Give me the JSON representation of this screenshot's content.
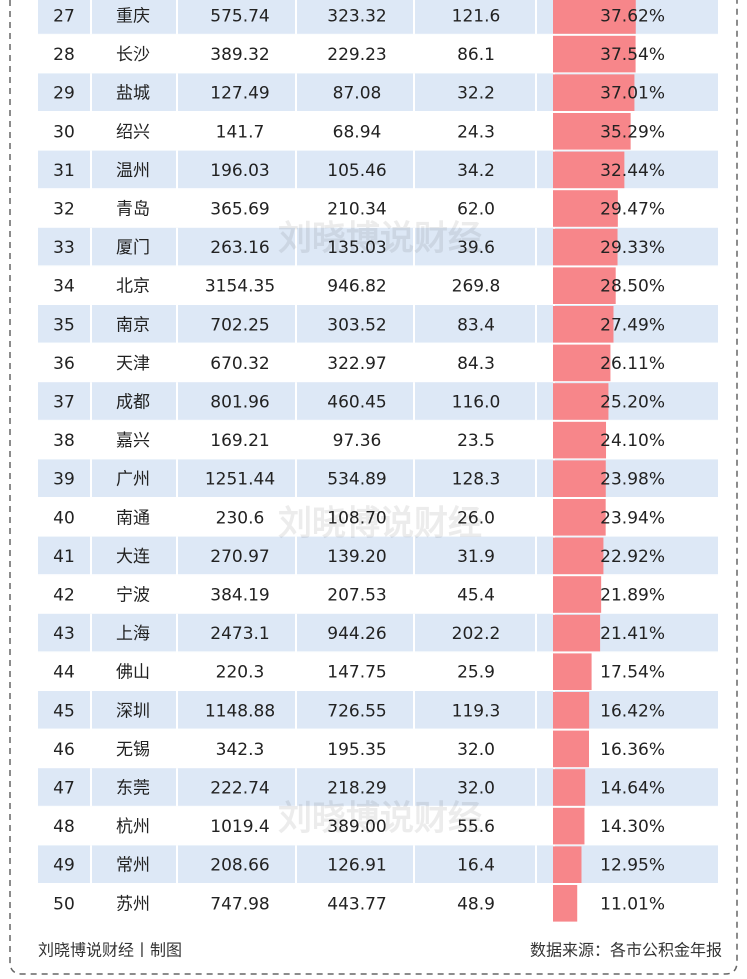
{
  "table": {
    "rows": [
      [
        "27",
        "重庆",
        "575.74",
        "323.32",
        "121.6",
        {
          "value": 37.62,
          "label": "37.62%"
        }
      ],
      [
        "28",
        "长沙",
        "389.32",
        "229.23",
        "86.1",
        {
          "value": 37.54,
          "label": "37.54%"
        }
      ],
      [
        "29",
        "盐城",
        "127.49",
        "87.08",
        "32.2",
        {
          "value": 37.01,
          "label": "37.01%"
        }
      ],
      [
        "30",
        "绍兴",
        "141.7",
        "68.94",
        "24.3",
        {
          "value": 35.29,
          "label": "35.29%"
        }
      ],
      [
        "31",
        "温州",
        "196.03",
        "105.46",
        "34.2",
        {
          "value": 32.44,
          "label": "32.44%"
        }
      ],
      [
        "32",
        "青岛",
        "365.69",
        "210.34",
        "62.0",
        {
          "value": 29.47,
          "label": "29.47%"
        }
      ],
      [
        "33",
        "厦门",
        "263.16",
        "135.03",
        "39.6",
        {
          "value": 29.33,
          "label": "29.33%"
        }
      ],
      [
        "34",
        "北京",
        "3154.35",
        "946.82",
        "269.8",
        {
          "value": 28.5,
          "label": "28.50%"
        }
      ],
      [
        "35",
        "南京",
        "702.25",
        "303.52",
        "83.4",
        {
          "value": 27.49,
          "label": "27.49%"
        }
      ],
      [
        "36",
        "天津",
        "670.32",
        "322.97",
        "84.3",
        {
          "value": 26.11,
          "label": "26.11%"
        }
      ],
      [
        "37",
        "成都",
        "801.96",
        "460.45",
        "116.0",
        {
          "value": 25.2,
          "label": "25.20%"
        }
      ],
      [
        "38",
        "嘉兴",
        "169.21",
        "97.36",
        "23.5",
        {
          "value": 24.1,
          "label": "24.10%"
        }
      ],
      [
        "39",
        "广州",
        "1251.44",
        "534.89",
        "128.3",
        {
          "value": 23.98,
          "label": "23.98%"
        }
      ],
      [
        "40",
        "南通",
        "230.6",
        "108.70",
        "26.0",
        {
          "value": 23.94,
          "label": "23.94%"
        }
      ],
      [
        "41",
        "大连",
        "270.97",
        "139.20",
        "31.9",
        {
          "value": 22.92,
          "label": "22.92%"
        }
      ],
      [
        "42",
        "宁波",
        "384.19",
        "207.53",
        "45.4",
        {
          "value": 21.89,
          "label": "21.89%"
        }
      ],
      [
        "43",
        "上海",
        "2473.1",
        "944.26",
        "202.2",
        {
          "value": 21.41,
          "label": "21.41%"
        }
      ],
      [
        "44",
        "佛山",
        "220.3",
        "147.75",
        "25.9",
        {
          "value": 17.54,
          "label": "17.54%"
        }
      ],
      [
        "45",
        "深圳",
        "1148.88",
        "726.55",
        "119.3",
        {
          "value": 16.42,
          "label": "16.42%"
        }
      ],
      [
        "46",
        "无锡",
        "342.3",
        "195.35",
        "32.0",
        {
          "value": 16.36,
          "label": "16.36%"
        }
      ],
      [
        "47",
        "东莞",
        "222.74",
        "218.29",
        "32.0",
        {
          "value": 14.64,
          "label": "14.64%"
        }
      ],
      [
        "48",
        "杭州",
        "1019.4",
        "389.00",
        "55.6",
        {
          "value": 14.3,
          "label": "14.30%"
        }
      ],
      [
        "49",
        "常州",
        "208.66",
        "126.91",
        "16.4",
        {
          "value": 12.95,
          "label": "12.95%"
        }
      ],
      [
        "50",
        "苏州",
        "747.98",
        "443.77",
        "48.9",
        {
          "value": 11.01,
          "label": "11.01%"
        }
      ]
    ]
  },
  "watermark": "刘晓博说财经",
  "footer": {
    "left": "刘晓博说财经丨制图",
    "right": "数据来源：各市公积金年报"
  }
}
